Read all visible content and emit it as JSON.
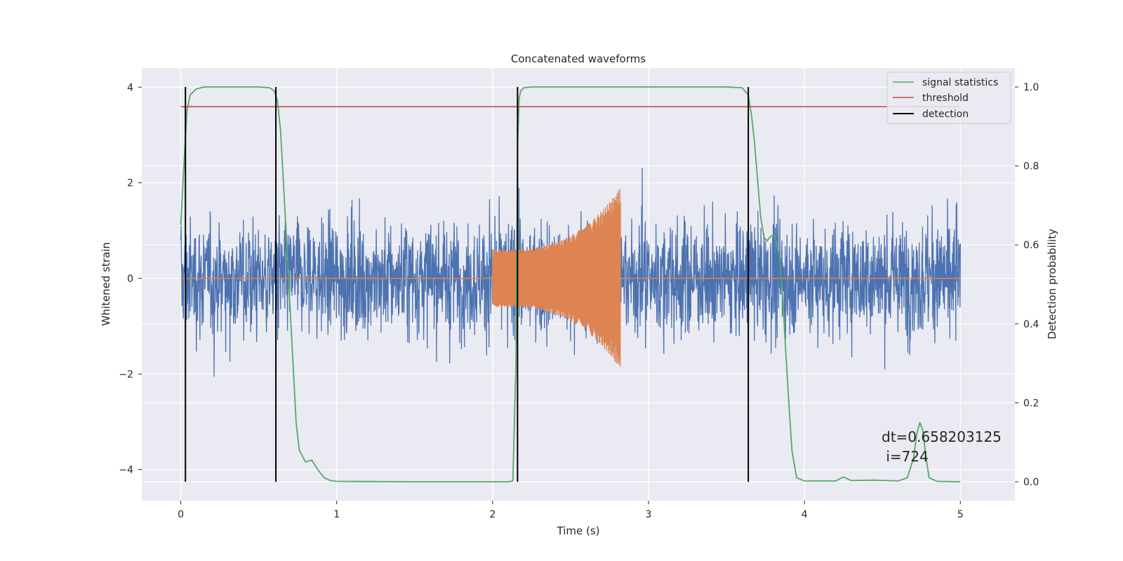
{
  "chart_data": {
    "type": "line",
    "title": "Concatenated waveforms",
    "xlabel": "Time (s)",
    "ylabel": "Whitened strain",
    "y2label": "Detection probability",
    "xlim": [
      -0.25,
      5.35
    ],
    "ylim": [
      -4.65,
      4.4
    ],
    "y2lim": [
      -0.048,
      1.048
    ],
    "xticks": [
      0,
      1,
      2,
      3,
      4,
      5
    ],
    "yticks": [
      -4,
      -2,
      0,
      2,
      4
    ],
    "y2ticks": [
      0.0,
      0.2,
      0.4,
      0.6,
      0.8,
      1.0
    ],
    "ytick_labels": [
      "−4",
      "−2",
      "0",
      "2",
      "4"
    ],
    "y2tick_labels": [
      "0.0",
      "0.2",
      "0.4",
      "0.6",
      "0.8",
      "1.0"
    ],
    "grid": true,
    "legend_position": "top-right",
    "legend": [
      "signal statistics",
      "threshold",
      "detection"
    ],
    "colors": {
      "strain": "#4c72b0",
      "waveform": "#dd8452",
      "signal_statistics": "#55a868",
      "threshold": "#c44e52",
      "detection": "#000000",
      "background": "#eaeaf2",
      "grid": "#ffffff"
    },
    "threshold": 0.95,
    "detections": [
      0.03,
      0.61,
      2.16,
      3.64
    ],
    "injections": [
      {
        "start": 2.0,
        "end": 2.82,
        "amp_start": 0.6,
        "amp_end": 1.9
      }
    ],
    "strain": {
      "t_start": 0.0,
      "t_end": 5.0,
      "noise_amplitude": 1.0
    },
    "signal_statistics": {
      "x": [
        0.0,
        0.02,
        0.04,
        0.06,
        0.1,
        0.15,
        0.3,
        0.5,
        0.57,
        0.6,
        0.62,
        0.64,
        0.66,
        0.68,
        0.7,
        0.72,
        0.74,
        0.76,
        0.8,
        0.84,
        0.88,
        0.92,
        0.96,
        1.0,
        1.5,
        2.0,
        2.1,
        2.13,
        2.15,
        2.16,
        2.17,
        2.18,
        2.2,
        2.25,
        2.5,
        3.0,
        3.5,
        3.6,
        3.64,
        3.66,
        3.68,
        3.7,
        3.72,
        3.74,
        3.76,
        3.78,
        3.8,
        3.82,
        3.84,
        3.86,
        3.88,
        3.9,
        3.92,
        3.95,
        4.0,
        4.2,
        4.25,
        4.3,
        4.45,
        4.6,
        4.66,
        4.7,
        4.72,
        4.74,
        4.76,
        4.78,
        4.8,
        4.85,
        5.0
      ],
      "y": [
        0.65,
        0.8,
        0.94,
        0.98,
        0.995,
        1.0,
        1.0,
        1.0,
        0.998,
        0.99,
        0.965,
        0.89,
        0.75,
        0.6,
        0.45,
        0.3,
        0.15,
        0.08,
        0.05,
        0.055,
        0.03,
        0.01,
        0.003,
        0.001,
        0.0,
        0.0,
        0.0,
        0.002,
        0.3,
        0.85,
        0.97,
        0.99,
        0.998,
        1.0,
        1.0,
        1.0,
        1.0,
        0.998,
        0.98,
        0.93,
        0.86,
        0.76,
        0.67,
        0.62,
        0.61,
        0.62,
        0.625,
        0.61,
        0.57,
        0.47,
        0.33,
        0.2,
        0.08,
        0.01,
        0.002,
        0.002,
        0.012,
        0.003,
        0.004,
        0.002,
        0.01,
        0.06,
        0.12,
        0.15,
        0.13,
        0.06,
        0.01,
        0.001,
        0.0
      ]
    },
    "annotation": {
      "line1": "dt=0.658203125",
      "line2": " i=724"
    }
  }
}
